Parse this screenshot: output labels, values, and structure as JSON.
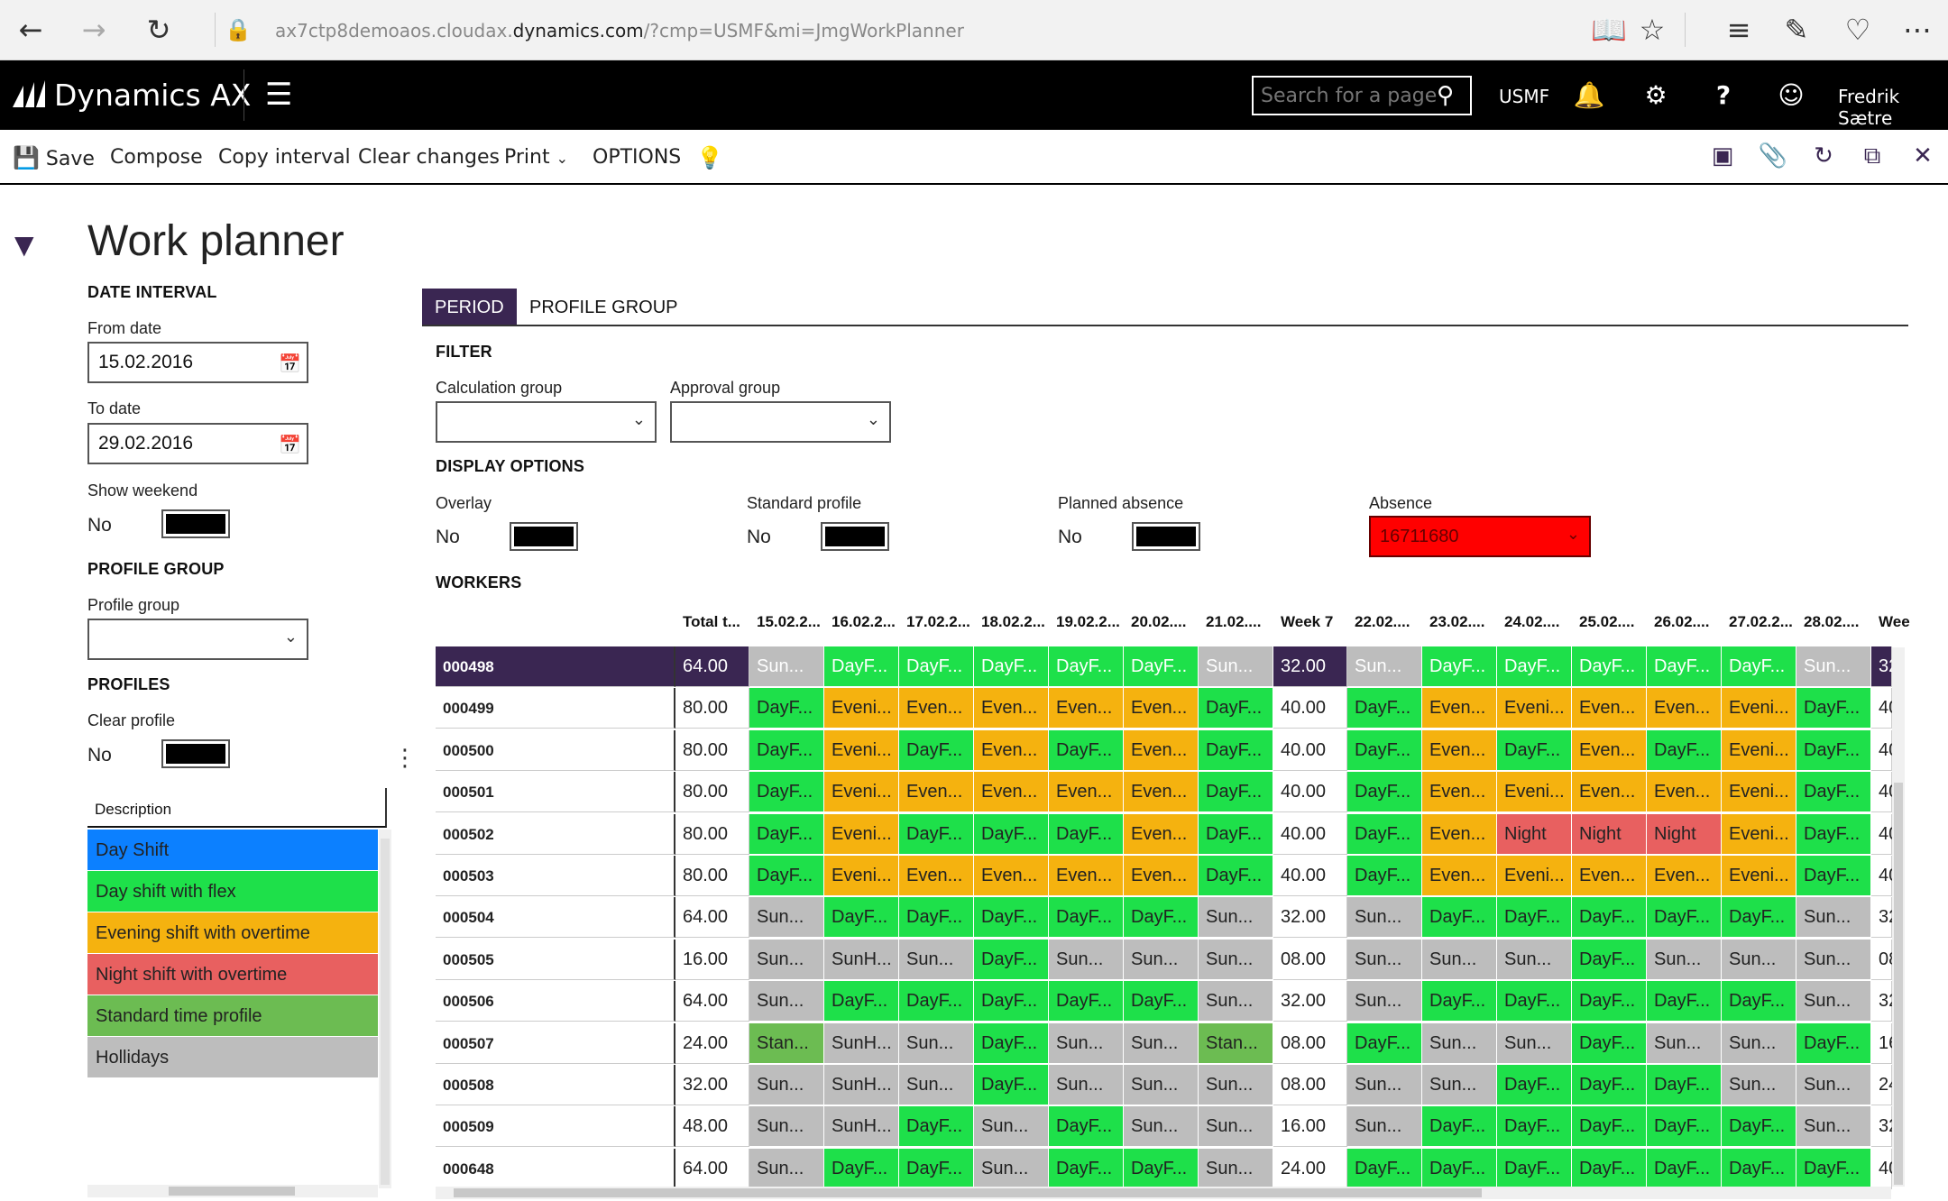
{
  "browser": {
    "url_prefix": "ax7ctp8demoaos.cloudax.",
    "url_domain": "dynamics.com",
    "url_suffix": "/?cmp=USMF&mi=JmgWorkPlanner",
    "icons": [
      "back-icon",
      "forward-icon",
      "refresh-icon",
      "lock-icon",
      "reading-view-icon",
      "favorite-star-icon",
      "hub-icon",
      "web-note-icon",
      "share-icon",
      "more-icon"
    ]
  },
  "appbar": {
    "brand": "Dynamics AX",
    "search_placeholder": "Search for a page",
    "company": "USMF",
    "user": "Fredrik Sætre"
  },
  "actions": {
    "save": "Save",
    "compose": "Compose",
    "copy_interval": "Copy interval",
    "clear_changes": "Clear changes",
    "print": "Print",
    "options": "OPTIONS"
  },
  "page": {
    "title": "Work planner"
  },
  "left": {
    "date_interval": "DATE INTERVAL",
    "from_date_label": "From date",
    "from_date": "15.02.2016",
    "to_date_label": "To date",
    "to_date": "29.02.2016",
    "show_weekend_label": "Show weekend",
    "show_weekend": "No",
    "profile_group_header": "PROFILE GROUP",
    "profile_group_label": "Profile group",
    "profile_group_value": "",
    "profiles_header": "PROFILES",
    "clear_profile_label": "Clear profile",
    "clear_profile": "No",
    "description_header": "Description",
    "profiles": [
      {
        "label": "Day Shift",
        "color": "#0c80ff"
      },
      {
        "label": "Day shift with flex",
        "color": "#1ee04a"
      },
      {
        "label": "Evening shift with overtime",
        "color": "#f5b20f"
      },
      {
        "label": "Night shift with overtime",
        "color": "#e86060"
      },
      {
        "label": "Standard time profile",
        "color": "#6cbc52"
      },
      {
        "label": "Hollidays",
        "color": "#bdbdbd"
      }
    ]
  },
  "tabs": {
    "period": "PERIOD",
    "profile_group": "PROFILE GROUP"
  },
  "filter": {
    "header": "FILTER",
    "calc_group_label": "Calculation group",
    "calc_group_value": "",
    "approval_group_label": "Approval group",
    "approval_group_value": ""
  },
  "display": {
    "header": "DISPLAY OPTIONS",
    "overlay_label": "Overlay",
    "overlay": "No",
    "standard_label": "Standard profile",
    "standard": "No",
    "planned_label": "Planned absence",
    "planned": "No",
    "absence_label": "Absence",
    "absence": "16711680"
  },
  "workers": {
    "header": "WORKERS",
    "columns": [
      "Total t...",
      "15.02.2...",
      "16.02.2...",
      "17.02.2...",
      "18.02.2...",
      "19.02.2...",
      "20.02....",
      "21.02....",
      "Week 7",
      "22.02....",
      "23.02....",
      "24.02....",
      "25.02....",
      "26.02....",
      "27.02.2...",
      "28.02....",
      "Wee"
    ],
    "colors": {
      "D": "#1ee04a",
      "E": "#f5b20f",
      "N": "#e86060",
      "H": "#bdbdbd",
      "S": "#6cbc52"
    },
    "rows": [
      {
        "id": "000498",
        "total": "64.00",
        "week": "32.00",
        "next": "32",
        "selected": true,
        "w1": [
          [
            "Sun...",
            "H"
          ],
          [
            "DayF...",
            "D"
          ],
          [
            "DayF...",
            "D"
          ],
          [
            "DayF...",
            "D"
          ],
          [
            "DayF...",
            "D"
          ],
          [
            "DayF...",
            "D"
          ],
          [
            "Sun...",
            "H"
          ]
        ],
        "w2": [
          [
            "Sun...",
            "H"
          ],
          [
            "DayF...",
            "D"
          ],
          [
            "DayF...",
            "D"
          ],
          [
            "DayF...",
            "D"
          ],
          [
            "DayF...",
            "D"
          ],
          [
            "DayF...",
            "D"
          ],
          [
            "Sun...",
            "H"
          ]
        ]
      },
      {
        "id": "000499",
        "total": "80.00",
        "week": "40.00",
        "next": "40",
        "w1": [
          [
            "DayF...",
            "D"
          ],
          [
            "Eveni...",
            "E"
          ],
          [
            "Even...",
            "E"
          ],
          [
            "Even...",
            "E"
          ],
          [
            "Even...",
            "E"
          ],
          [
            "Even...",
            "E"
          ],
          [
            "DayF...",
            "D"
          ]
        ],
        "w2": [
          [
            "DayF...",
            "D"
          ],
          [
            "Even...",
            "E"
          ],
          [
            "Eveni...",
            "E"
          ],
          [
            "Even...",
            "E"
          ],
          [
            "Even...",
            "E"
          ],
          [
            "Eveni...",
            "E"
          ],
          [
            "DayF...",
            "D"
          ]
        ]
      },
      {
        "id": "000500",
        "total": "80.00",
        "week": "40.00",
        "next": "40",
        "w1": [
          [
            "DayF...",
            "D"
          ],
          [
            "Eveni...",
            "E"
          ],
          [
            "DayF...",
            "D"
          ],
          [
            "Even...",
            "E"
          ],
          [
            "DayF...",
            "D"
          ],
          [
            "Even...",
            "E"
          ],
          [
            "DayF...",
            "D"
          ]
        ],
        "w2": [
          [
            "DayF...",
            "D"
          ],
          [
            "Even...",
            "E"
          ],
          [
            "DayF...",
            "D"
          ],
          [
            "Even...",
            "E"
          ],
          [
            "DayF...",
            "D"
          ],
          [
            "Eveni...",
            "E"
          ],
          [
            "DayF...",
            "D"
          ]
        ]
      },
      {
        "id": "000501",
        "total": "80.00",
        "week": "40.00",
        "next": "40",
        "w1": [
          [
            "DayF...",
            "D"
          ],
          [
            "Eveni...",
            "E"
          ],
          [
            "Even...",
            "E"
          ],
          [
            "Even...",
            "E"
          ],
          [
            "Even...",
            "E"
          ],
          [
            "Even...",
            "E"
          ],
          [
            "DayF...",
            "D"
          ]
        ],
        "w2": [
          [
            "DayF...",
            "D"
          ],
          [
            "Even...",
            "E"
          ],
          [
            "Eveni...",
            "E"
          ],
          [
            "Even...",
            "E"
          ],
          [
            "Even...",
            "E"
          ],
          [
            "Eveni...",
            "E"
          ],
          [
            "DayF...",
            "D"
          ]
        ]
      },
      {
        "id": "000502",
        "total": "80.00",
        "week": "40.00",
        "next": "40",
        "w1": [
          [
            "DayF...",
            "D"
          ],
          [
            "Eveni...",
            "E"
          ],
          [
            "DayF...",
            "D"
          ],
          [
            "DayF...",
            "D"
          ],
          [
            "DayF...",
            "D"
          ],
          [
            "Even...",
            "E"
          ],
          [
            "DayF...",
            "D"
          ]
        ],
        "w2": [
          [
            "DayF...",
            "D"
          ],
          [
            "Even...",
            "E"
          ],
          [
            "Night",
            "N"
          ],
          [
            "Night",
            "N"
          ],
          [
            "Night",
            "N"
          ],
          [
            "Eveni...",
            "E"
          ],
          [
            "DayF...",
            "D"
          ]
        ]
      },
      {
        "id": "000503",
        "total": "80.00",
        "week": "40.00",
        "next": "40",
        "w1": [
          [
            "DayF...",
            "D"
          ],
          [
            "Eveni...",
            "E"
          ],
          [
            "Even...",
            "E"
          ],
          [
            "Even...",
            "E"
          ],
          [
            "Even...",
            "E"
          ],
          [
            "Even...",
            "E"
          ],
          [
            "DayF...",
            "D"
          ]
        ],
        "w2": [
          [
            "DayF...",
            "D"
          ],
          [
            "Even...",
            "E"
          ],
          [
            "Eveni...",
            "E"
          ],
          [
            "Even...",
            "E"
          ],
          [
            "Even...",
            "E"
          ],
          [
            "Eveni...",
            "E"
          ],
          [
            "DayF...",
            "D"
          ]
        ]
      },
      {
        "id": "000504",
        "total": "64.00",
        "week": "32.00",
        "next": "32",
        "w1": [
          [
            "Sun...",
            "H"
          ],
          [
            "DayF...",
            "D"
          ],
          [
            "DayF...",
            "D"
          ],
          [
            "DayF...",
            "D"
          ],
          [
            "DayF...",
            "D"
          ],
          [
            "DayF...",
            "D"
          ],
          [
            "Sun...",
            "H"
          ]
        ],
        "w2": [
          [
            "Sun...",
            "H"
          ],
          [
            "DayF...",
            "D"
          ],
          [
            "DayF...",
            "D"
          ],
          [
            "DayF...",
            "D"
          ],
          [
            "DayF...",
            "D"
          ],
          [
            "DayF...",
            "D"
          ],
          [
            "Sun...",
            "H"
          ]
        ]
      },
      {
        "id": "000505",
        "total": "16.00",
        "week": "08.00",
        "next": "08",
        "w1": [
          [
            "Sun...",
            "H"
          ],
          [
            "SunH...",
            "H"
          ],
          [
            "Sun...",
            "H"
          ],
          [
            "DayF...",
            "D"
          ],
          [
            "Sun...",
            "H"
          ],
          [
            "Sun...",
            "H"
          ],
          [
            "Sun...",
            "H"
          ]
        ],
        "w2": [
          [
            "Sun...",
            "H"
          ],
          [
            "Sun...",
            "H"
          ],
          [
            "Sun...",
            "H"
          ],
          [
            "DayF...",
            "D"
          ],
          [
            "Sun...",
            "H"
          ],
          [
            "Sun...",
            "H"
          ],
          [
            "Sun...",
            "H"
          ]
        ]
      },
      {
        "id": "000506",
        "total": "64.00",
        "week": "32.00",
        "next": "32",
        "w1": [
          [
            "Sun...",
            "H"
          ],
          [
            "DayF...",
            "D"
          ],
          [
            "DayF...",
            "D"
          ],
          [
            "DayF...",
            "D"
          ],
          [
            "DayF...",
            "D"
          ],
          [
            "DayF...",
            "D"
          ],
          [
            "Sun...",
            "H"
          ]
        ],
        "w2": [
          [
            "Sun...",
            "H"
          ],
          [
            "DayF...",
            "D"
          ],
          [
            "DayF...",
            "D"
          ],
          [
            "DayF...",
            "D"
          ],
          [
            "DayF...",
            "D"
          ],
          [
            "DayF...",
            "D"
          ],
          [
            "Sun...",
            "H"
          ]
        ]
      },
      {
        "id": "000507",
        "total": "24.00",
        "week": "08.00",
        "next": "16",
        "w1": [
          [
            "Stan...",
            "S"
          ],
          [
            "SunH...",
            "H"
          ],
          [
            "Sun...",
            "H"
          ],
          [
            "DayF...",
            "D"
          ],
          [
            "Sun...",
            "H"
          ],
          [
            "Sun...",
            "H"
          ],
          [
            "Stan...",
            "S"
          ]
        ],
        "w2": [
          [
            "DayF...",
            "D"
          ],
          [
            "Sun...",
            "H"
          ],
          [
            "Sun...",
            "H"
          ],
          [
            "DayF...",
            "D"
          ],
          [
            "Sun...",
            "H"
          ],
          [
            "Sun...",
            "H"
          ],
          [
            "DayF...",
            "D"
          ]
        ]
      },
      {
        "id": "000508",
        "total": "32.00",
        "week": "08.00",
        "next": "24",
        "w1": [
          [
            "Sun...",
            "H"
          ],
          [
            "SunH...",
            "H"
          ],
          [
            "Sun...",
            "H"
          ],
          [
            "DayF...",
            "D"
          ],
          [
            "Sun...",
            "H"
          ],
          [
            "Sun...",
            "H"
          ],
          [
            "Sun...",
            "H"
          ]
        ],
        "w2": [
          [
            "Sun...",
            "H"
          ],
          [
            "Sun...",
            "H"
          ],
          [
            "DayF...",
            "D"
          ],
          [
            "DayF...",
            "D"
          ],
          [
            "DayF...",
            "D"
          ],
          [
            "Sun...",
            "H"
          ],
          [
            "Sun...",
            "H"
          ]
        ]
      },
      {
        "id": "000509",
        "total": "48.00",
        "week": "16.00",
        "next": "32",
        "w1": [
          [
            "Sun...",
            "H"
          ],
          [
            "SunH...",
            "H"
          ],
          [
            "DayF...",
            "D"
          ],
          [
            "Sun...",
            "H"
          ],
          [
            "DayF...",
            "D"
          ],
          [
            "Sun...",
            "H"
          ],
          [
            "Sun...",
            "H"
          ]
        ],
        "w2": [
          [
            "Sun...",
            "H"
          ],
          [
            "DayF...",
            "D"
          ],
          [
            "DayF...",
            "D"
          ],
          [
            "DayF...",
            "D"
          ],
          [
            "DayF...",
            "D"
          ],
          [
            "DayF...",
            "D"
          ],
          [
            "Sun...",
            "H"
          ]
        ]
      },
      {
        "id": "000648",
        "total": "64.00",
        "week": "24.00",
        "next": "40",
        "w1": [
          [
            "Sun...",
            "H"
          ],
          [
            "DayF...",
            "D"
          ],
          [
            "DayF...",
            "D"
          ],
          [
            "Sun...",
            "H"
          ],
          [
            "DayF...",
            "D"
          ],
          [
            "DayF...",
            "D"
          ],
          [
            "Sun...",
            "H"
          ]
        ],
        "w2": [
          [
            "DayF...",
            "D"
          ],
          [
            "DayF...",
            "D"
          ],
          [
            "DayF...",
            "D"
          ],
          [
            "DayF...",
            "D"
          ],
          [
            "DayF...",
            "D"
          ],
          [
            "DayF...",
            "D"
          ],
          [
            "DayF...",
            "D"
          ]
        ]
      }
    ]
  }
}
